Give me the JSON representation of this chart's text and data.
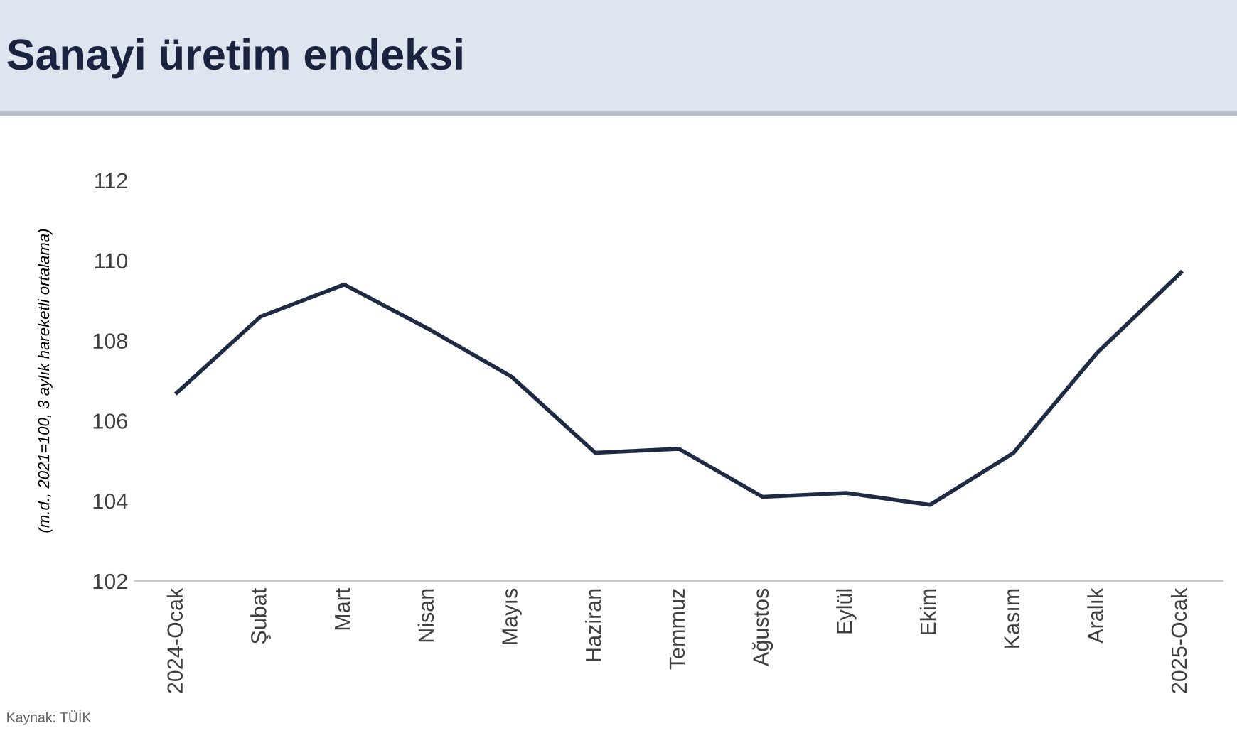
{
  "chart_data": {
    "type": "line",
    "title": "Sanayi üretim endeksi",
    "ylabel": "(m.d., 2021=100, 3 aylık hareketli ortalama)",
    "categories": [
      "2024-Ocak",
      "Şubat",
      "Mart",
      "Nisan",
      "Mayıs",
      "Haziran",
      "Temmuz",
      "Ağustos",
      "Eylül",
      "Ekim",
      "Kasım",
      "Aralık",
      "2025-Ocak"
    ],
    "series": [
      {
        "color": "#1f2a44",
        "values": [
          106.7,
          108.6,
          109.4,
          108.3,
          107.1,
          105.2,
          105.3,
          104.1,
          104.2,
          103.9,
          105.2,
          107.7,
          109.7
        ]
      }
    ],
    "ylim": [
      102,
      112
    ],
    "yticks": [
      102,
      104,
      106,
      108,
      110,
      112
    ],
    "grid": false,
    "legend": false,
    "marker": "none",
    "line_style": "solid",
    "annotations": [
      "Kaynak: TÜİK"
    ]
  }
}
